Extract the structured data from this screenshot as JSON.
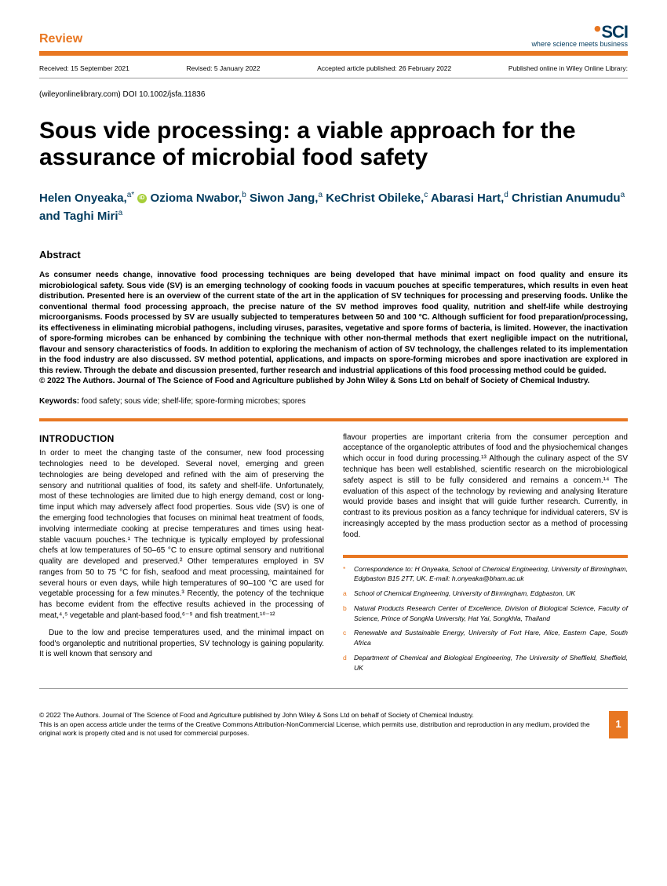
{
  "header": {
    "review_label": "Review",
    "logo_text": "SCI",
    "logo_tagline": "where science meets business",
    "received": "Received: 15 September 2021",
    "revised": "Revised: 5 January 2022",
    "accepted": "Accepted article published: 26 February 2022",
    "published": "Published online in Wiley Online Library:",
    "doi_line": "(wileyonlinelibrary.com) DOI 10.1002/jsfa.11836"
  },
  "title": "Sous vide processing: a viable approach for the assurance of microbial food safety",
  "authors_html": "Helen Onyeaka,<sup>a*</sup> <span class='orcid'></span> Ozioma Nwabor,<sup>b</sup> Siwon Jang,<sup>a</sup> KeChrist Obileke,<sup>c</sup> Abarasi Hart,<sup>d</sup> Christian Anumudu<sup>a</sup> and Taghi Miri<sup>a</sup>",
  "abstract": {
    "heading": "Abstract",
    "body": "As consumer needs change, innovative food processing techniques are being developed that have minimal impact on food quality and ensure its microbiological safety. Sous vide (SV) is an emerging technology of cooking foods in vacuum pouches at specific temperatures, which results in even heat distribution. Presented here is an overview of the current state of the art in the application of SV techniques for processing and preserving foods. Unlike the conventional thermal food processing approach, the precise nature of the SV method improves food quality, nutrition and shelf-life while destroying microorganisms. Foods processed by SV are usually subjected to temperatures between 50 and 100 °C. Although sufficient for food preparation/processing, its effectiveness in eliminating microbial pathogens, including viruses, parasites, vegetative and spore forms of bacteria, is limited. However, the inactivation of spore-forming microbes can be enhanced by combining the technique with other non-thermal methods that exert negligible impact on the nutritional, flavour and sensory characteristics of foods. In addition to exploring the mechanism of action of SV technology, the challenges related to its implementation in the food industry are also discussed. SV method potential, applications, and impacts on spore-forming microbes and spore inactivation are explored in this review. Through the debate and discussion presented, further research and industrial applications of this food processing method could be guided.",
    "copyright": "© 2022 The Authors. Journal of The Science of Food and Agriculture published by John Wiley & Sons Ltd on behalf of Society of Chemical Industry."
  },
  "keywords": {
    "label": "Keywords:",
    "text": " food safety; sous vide; shelf-life; spore-forming microbes; spores"
  },
  "intro": {
    "heading": "INTRODUCTION",
    "p1": "In order to meet the changing taste of the consumer, new food processing technologies need to be developed. Several novel, emerging and green technologies are being developed and refined with the aim of preserving the sensory and nutritional qualities of food, its safety and shelf-life. Unfortunately, most of these technologies are limited due to high energy demand, cost or long-time input which may adversely affect food properties. Sous vide (SV) is one of the emerging food technologies that focuses on minimal heat treatment of foods, involving intermediate cooking at precise temperatures and times using heat-stable vacuum pouches.¹ The technique is typically employed by professional chefs at low temperatures of 50–65 °C to ensure optimal sensory and nutritional quality are developed and preserved.² Other temperatures employed in SV ranges from 50 to 75 °C for fish, seafood and meat processing, maintained for several hours or even days, while high temperatures of 90–100 °C are used for vegetable processing for a few minutes.³ Recently, the potency of the technique has become evident from the effective results achieved in the processing of meat,⁴,⁵ vegetable and plant-based food,⁶⁻⁹ and fish treatment.¹⁰⁻¹²",
    "p2": "Due to the low and precise temperatures used, and the minimal impact on food's organoleptic and nutritional properties, SV technology is gaining popularity. It is well known that sensory and",
    "p3": "flavour properties are important criteria from the consumer perception and acceptance of the organoleptic attributes of food and the physiochemical changes which occur in food during processing.¹³ Although the culinary aspect of the SV technique has been well established, scientific research on the microbiological safety aspect is still to be fully considered and remains a concern.¹⁴ The evaluation of this aspect of the technology by reviewing and analysing literature would provide bases and insight that will guide further research. Currently, in contrast to its previous position as a fancy technique for individual caterers, SV is increasingly accepted by the mass production sector as a method of processing food."
  },
  "affiliations": {
    "corr": "Correspondence to: H Onyeaka, School of Chemical Engineering, University of Birmingham, Edgbaston B15 2TT, UK. E-mail: h.onyeaka@bham.ac.uk",
    "a": "School of Chemical Engineering, University of Birmingham, Edgbaston, UK",
    "b": "Natural Products Research Center of Excellence, Division of Biological Science, Faculty of Science, Prince of Songkla University, Hat Yai, Songkhla, Thailand",
    "c": "Renewable and Sustainable Energy, University of Fort Hare, Alice, Eastern Cape, South Africa",
    "d": "Department of Chemical and Biological Engineering, The University of Sheffield, Sheffield, UK"
  },
  "footer": {
    "line1": "© 2022 The Authors. Journal of The Science of Food and Agriculture published by John Wiley & Sons Ltd on behalf of Society of Chemical Industry.",
    "line2": "This is an open access article under the terms of the Creative Commons Attribution-NonCommercial License, which permits use, distribution and reproduction in any medium, provided the original work is properly cited and is not used for commercial purposes.",
    "page": "1"
  }
}
